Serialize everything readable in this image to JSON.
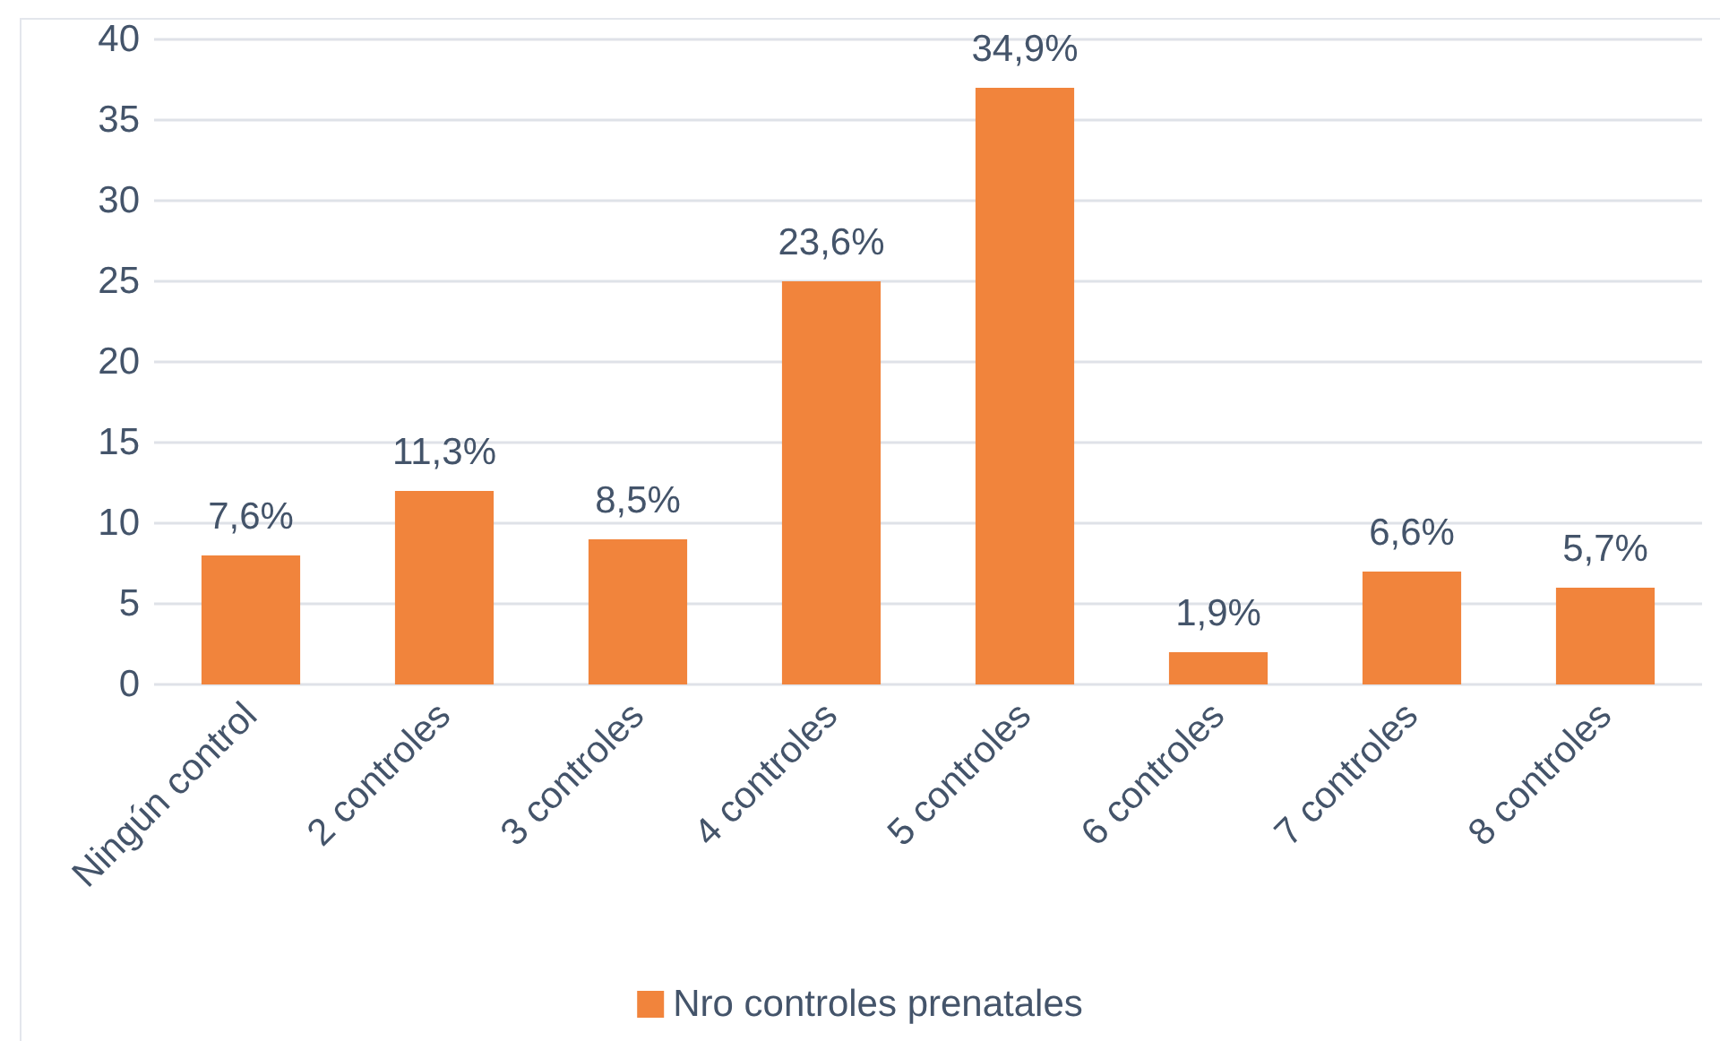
{
  "chart_data": {
    "type": "bar",
    "categories": [
      "Ningún control",
      "2 controles",
      "3 controles",
      "4 controles",
      "5 controles",
      "6 controles",
      "7 controles",
      "8 controles"
    ],
    "series": [
      {
        "name": "Nro controles prenatales",
        "color": "#f1843c",
        "values": [
          8,
          12,
          9,
          25,
          37,
          2,
          7,
          6
        ]
      }
    ],
    "annotations": [
      {
        "text": "7,6%",
        "x": "Ningún control",
        "y": 8
      },
      {
        "text": "11,3%",
        "x": "2 controles",
        "y": 12
      },
      {
        "text": "8,5%",
        "x": "3 controles",
        "y": 9
      },
      {
        "text": "23,6%",
        "x": "4 controles",
        "y": 25
      },
      {
        "text": "34,9%",
        "x": "5 controles",
        "y": 37
      },
      {
        "text": "1,9%",
        "x": "6 controles",
        "y": 2
      },
      {
        "text": "6,6%",
        "x": "7 controles",
        "y": 7
      },
      {
        "text": "5,7%",
        "x": "8 controles",
        "y": 6
      }
    ],
    "ylim": [
      0,
      40
    ],
    "yticks": [
      0,
      5,
      10,
      15,
      20,
      25,
      30,
      35,
      40
    ],
    "grid": "y",
    "legend": "bottom"
  }
}
